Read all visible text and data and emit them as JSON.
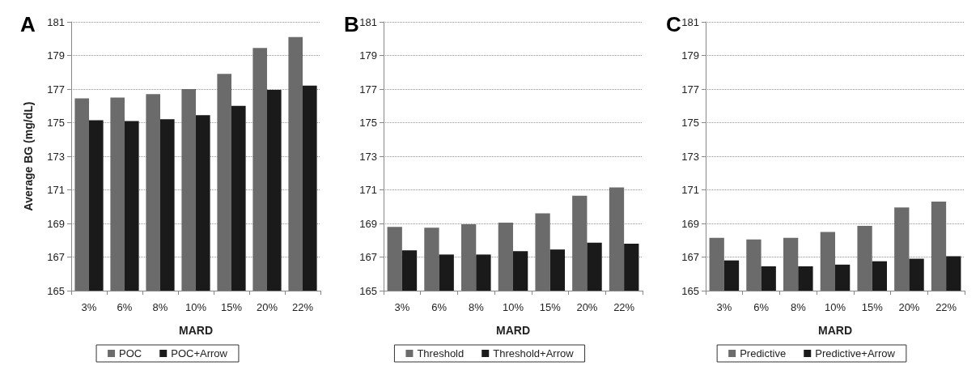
{
  "chart_data": [
    {
      "type": "bar",
      "title": "A",
      "xlabel": "MARD",
      "ylabel": "Average BG (mg/dL)",
      "categories": [
        "3%",
        "6%",
        "8%",
        "10%",
        "15%",
        "20%",
        "22%"
      ],
      "series": [
        {
          "name": "POC",
          "color": "#6b6b6b",
          "values": [
            176.45,
            176.5,
            176.7,
            177.0,
            177.9,
            179.45,
            180.1
          ]
        },
        {
          "name": "POC+Arrow",
          "color": "#1a1a1a",
          "values": [
            175.15,
            175.1,
            175.2,
            175.45,
            176.0,
            176.95,
            177.2
          ]
        }
      ],
      "ylim": [
        165,
        181
      ],
      "yticks": [
        165,
        167,
        169,
        171,
        173,
        175,
        177,
        179,
        181
      ],
      "grid": "y",
      "legend": "bottom"
    },
    {
      "type": "bar",
      "title": "B",
      "xlabel": "MARD",
      "categories": [
        "3%",
        "6%",
        "8%",
        "10%",
        "15%",
        "20%",
        "22%"
      ],
      "series": [
        {
          "name": "Threshold",
          "color": "#6b6b6b",
          "values": [
            168.8,
            168.75,
            168.95,
            169.05,
            169.6,
            170.65,
            171.15
          ]
        },
        {
          "name": "Threshold+Arrow",
          "color": "#1a1a1a",
          "values": [
            167.4,
            167.15,
            167.15,
            167.35,
            167.45,
            167.85,
            167.8
          ]
        }
      ],
      "ylim": [
        165,
        181
      ],
      "yticks": [
        165,
        167,
        169,
        171,
        173,
        175,
        177,
        179,
        181
      ],
      "grid": "y",
      "legend": "bottom"
    },
    {
      "type": "bar",
      "title": "C",
      "xlabel": "MARD",
      "categories": [
        "3%",
        "6%",
        "8%",
        "10%",
        "15%",
        "20%",
        "22%"
      ],
      "series": [
        {
          "name": "Predictive",
          "color": "#6b6b6b",
          "values": [
            168.15,
            168.05,
            168.15,
            168.5,
            168.85,
            169.95,
            170.3
          ]
        },
        {
          "name": "Predictive+Arrow",
          "color": "#1a1a1a",
          "values": [
            166.8,
            166.45,
            166.45,
            166.55,
            166.75,
            166.9,
            167.05
          ]
        }
      ],
      "ylim": [
        165,
        181
      ],
      "yticks": [
        165,
        167,
        169,
        171,
        173,
        175,
        177,
        179,
        181
      ],
      "grid": "y",
      "legend": "bottom"
    }
  ]
}
